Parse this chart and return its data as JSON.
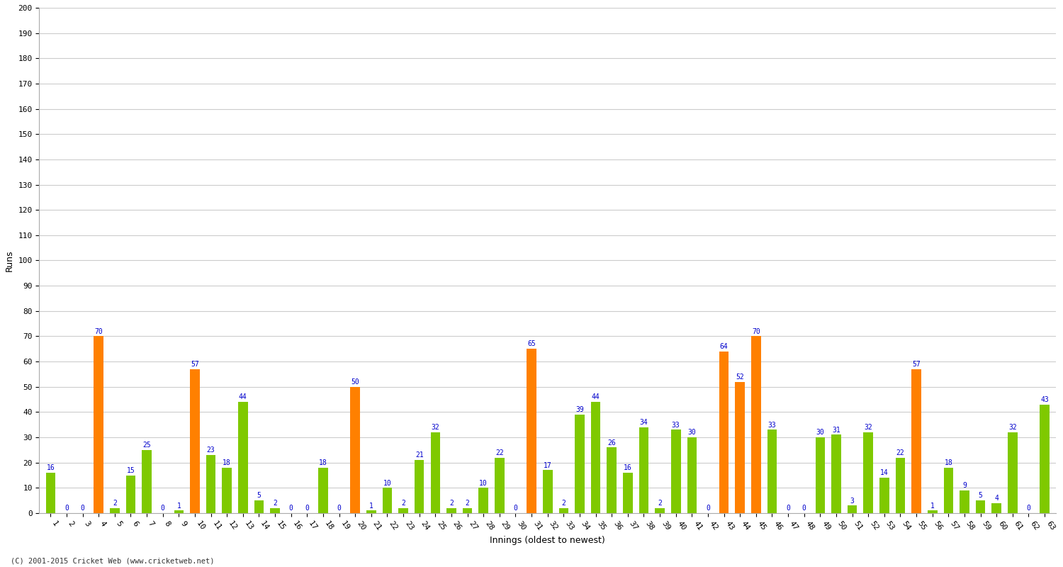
{
  "xlabel": "Innings (oldest to newest)",
  "ylabel": "Runs",
  "footer": "(C) 2001-2015 Cricket Web (www.cricketweb.net)",
  "ylim": [
    0,
    200
  ],
  "yticks": [
    0,
    10,
    20,
    30,
    40,
    50,
    60,
    70,
    80,
    90,
    100,
    110,
    120,
    130,
    140,
    150,
    160,
    170,
    180,
    190,
    200
  ],
  "innings": [
    1,
    2,
    3,
    4,
    5,
    6,
    7,
    8,
    9,
    10,
    11,
    12,
    13,
    14,
    15,
    16,
    17,
    18,
    19,
    20,
    21,
    22,
    23,
    24,
    25,
    26,
    27,
    28,
    29,
    30,
    31,
    32,
    33,
    34,
    35,
    36,
    37,
    38,
    39,
    40,
    41,
    42,
    43,
    44,
    45,
    46,
    47,
    48,
    49,
    50,
    51,
    52,
    53,
    54,
    55,
    56,
    57,
    58,
    59,
    60,
    61,
    62,
    63
  ],
  "values": [
    16,
    0,
    0,
    70,
    2,
    15,
    25,
    0,
    1,
    57,
    23,
    18,
    44,
    5,
    2,
    0,
    0,
    18,
    0,
    50,
    1,
    10,
    2,
    21,
    32,
    2,
    2,
    10,
    22,
    0,
    65,
    17,
    2,
    39,
    44,
    26,
    16,
    34,
    2,
    33,
    30,
    0,
    64,
    52,
    70,
    33,
    0,
    0,
    30,
    31,
    3,
    32,
    14,
    22,
    57,
    1,
    18,
    9,
    5,
    4,
    32,
    0,
    43
  ],
  "bar_colors": [
    "#7fc900",
    "#7fc900",
    "#7fc900",
    "#ff8000",
    "#7fc900",
    "#7fc900",
    "#7fc900",
    "#7fc900",
    "#7fc900",
    "#ff8000",
    "#7fc900",
    "#7fc900",
    "#7fc900",
    "#7fc900",
    "#7fc900",
    "#7fc900",
    "#7fc900",
    "#7fc900",
    "#7fc900",
    "#ff8000",
    "#7fc900",
    "#7fc900",
    "#7fc900",
    "#7fc900",
    "#7fc900",
    "#7fc900",
    "#7fc900",
    "#7fc900",
    "#7fc900",
    "#7fc900",
    "#ff8000",
    "#7fc900",
    "#7fc900",
    "#7fc900",
    "#7fc900",
    "#7fc900",
    "#7fc900",
    "#7fc900",
    "#7fc900",
    "#7fc900",
    "#7fc900",
    "#7fc900",
    "#ff8000",
    "#ff8000",
    "#ff8000",
    "#7fc900",
    "#7fc900",
    "#7fc900",
    "#7fc900",
    "#7fc900",
    "#7fc900",
    "#7fc900",
    "#7fc900",
    "#7fc900",
    "#ff8000",
    "#7fc900",
    "#7fc900",
    "#7fc900",
    "#7fc900",
    "#7fc900",
    "#7fc900",
    "#7fc900",
    "#7fc900"
  ],
  "label_color": "#0000cc",
  "background_color": "#ffffff",
  "grid_color": "#cccccc",
  "bar_width": 0.6,
  "label_fontsize": 7,
  "axis_fontsize": 8,
  "ylabel_fontsize": 9,
  "xlabel_fontsize": 9,
  "tick_rotation": -55,
  "figsize": [
    15.0,
    8.0
  ],
  "dpi": 100
}
